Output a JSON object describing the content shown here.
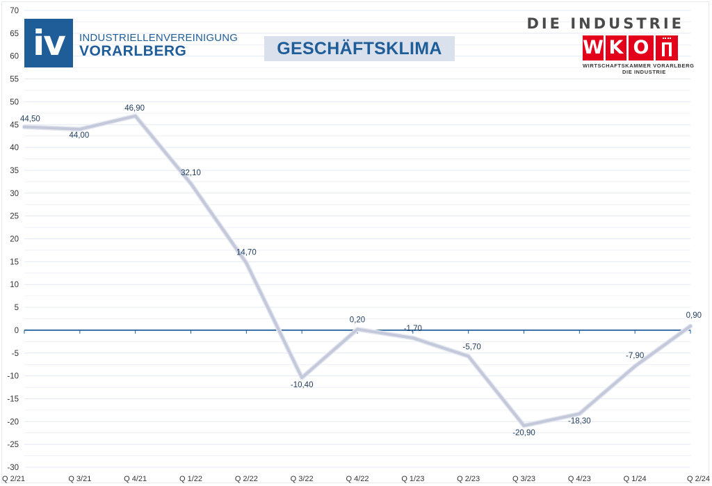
{
  "header": {
    "iv_logo_text": "iv",
    "iv_name_line1": "INDUSTRIELLENVEREINIGUNG",
    "iv_name_line2": "VORARLBERG",
    "wko_top": "DIE INDUSTRIE",
    "wko_letter_w": "W",
    "wko_letter_k": "K",
    "wko_letter_o": "O",
    "wko_sub1": "WIRTSCHAFTSKAMMER VORARLBERG",
    "wko_sub2": "DIE INDUSTRIE"
  },
  "colors": {
    "line": "#c3c9db",
    "zero_axis": "#1f5d99",
    "grid": "#e3e8f2",
    "label": "#1f3b5c",
    "title": "#1f5d99",
    "wko_red": "#e2001a"
  },
  "chart_data": {
    "type": "line",
    "title": "GESCHÄFTSKLIMA",
    "xlabel": "",
    "ylabel": "",
    "ylim": [
      -30,
      70
    ],
    "yticks": [
      70,
      65,
      60,
      55,
      50,
      45,
      40,
      35,
      30,
      25,
      20,
      15,
      10,
      5,
      0,
      -5,
      -10,
      -15,
      -20,
      -25,
      -30
    ],
    "grid": true,
    "legend": "none",
    "categories": [
      "Q 2/21",
      "Q 3/21",
      "Q 4/21",
      "Q 1/22",
      "Q 2/22",
      "Q 3/22",
      "Q 4/22",
      "Q 1/23",
      "Q 2/23",
      "Q 3/23",
      "Q 4/23",
      "Q 1/24",
      "Q 2/24"
    ],
    "series": [
      {
        "name": "Geschäftsklima",
        "values": [
          44.5,
          44.0,
          46.9,
          32.1,
          14.7,
          -10.4,
          0.2,
          -1.7,
          -5.7,
          -20.9,
          -18.3,
          -7.9,
          0.9
        ],
        "labels": [
          "44,50",
          "44,00",
          "46,90",
          "32,10",
          "14,70",
          "-10,40",
          "0,20",
          "-1,70",
          "-5,70",
          "-20,90",
          "-18,30",
          "-7,90",
          "0,90"
        ]
      }
    ]
  }
}
